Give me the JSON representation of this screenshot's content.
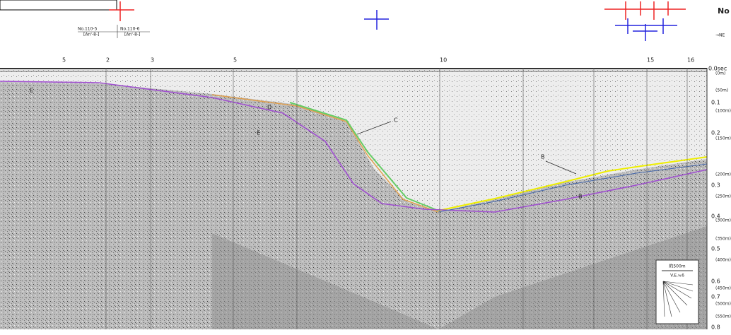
{
  "header": {
    "title": "No",
    "subtitle": "→NE"
  },
  "section_labels": [
    {
      "name": "No.110-5",
      "code": "[An'-8-]"
    },
    {
      "name": "No.110-6",
      "code": "[An'-8-]"
    }
  ],
  "station_numbers": [
    "5",
    "2",
    "3",
    "5",
    "10",
    "15",
    "16"
  ],
  "horizon_labels": [
    "E",
    "D",
    "E",
    "C",
    "B",
    "B"
  ],
  "time_scale": [
    "0.0sec",
    "0.1",
    "0.2",
    "0.3",
    "0.4",
    "0.5",
    "0.6",
    "0.7",
    "0.8"
  ],
  "depth_scale": [
    "(0m)",
    "(50m)",
    "(100m)",
    "(150m)",
    "(200m)",
    "(250m)",
    "(300m)",
    "(350m)",
    "(400m)",
    "(450m)",
    "(500m)",
    "(550m)"
  ],
  "legend": {
    "distance": "約500m",
    "exaggeration": "V.E.≒6"
  }
}
